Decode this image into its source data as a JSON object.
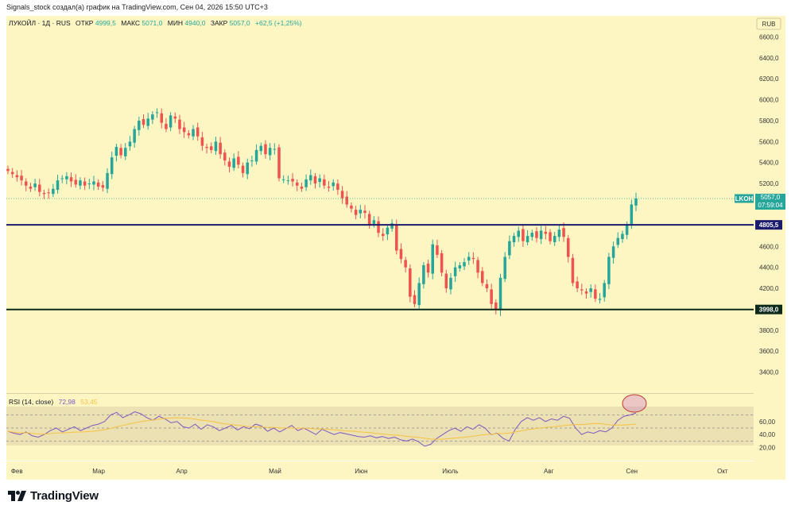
{
  "header": {
    "credit": "Signals_stock создал(а) график на TradingView.com, Сен 04, 2026 15:50 UTC+3"
  },
  "legend": {
    "symbol": "ЛУКОЙЛ · 1Д · RUS",
    "open_label": "ОТКР",
    "open": "4999,5",
    "high_label": "МАКС",
    "high": "5071,0",
    "low_label": "МИН",
    "low": "4940,0",
    "close_label": "ЗАКР",
    "close": "5057,0",
    "change": "+62,5 (+1,25%)"
  },
  "currency": "RUB",
  "price_tag": {
    "ticker": "LKOH",
    "price": "5057,0",
    "countdown": "07:59:04"
  },
  "levels": [
    {
      "value": 4805.5,
      "label": "4805,5"
    },
    {
      "value": 3998.0,
      "label": "3998,0"
    }
  ],
  "rsi": {
    "label": "RSI (14, close)",
    "value": "72,98",
    "ma_value": "53,45",
    "levels": [
      "60,00",
      "40,00",
      "20,00"
    ]
  },
  "logo": {
    "text": "TradingView"
  },
  "colors": {
    "background": "#fdf6c3",
    "up": "#26a69a",
    "down": "#ef5350",
    "level_line": "#1a1a6e",
    "rsi_line": "#7e57c2",
    "rsi_ma": "#f5c242"
  },
  "chart_data": {
    "type": "candlestick",
    "series_name": "ЛУКОЙЛ",
    "ylim": [
      3200,
      6800
    ],
    "y_ticks": [
      "6600,0",
      "6400,0",
      "6200,0",
      "6000,0",
      "5800,0",
      "5600,0",
      "5400,0",
      "5200,0",
      "4600,0",
      "4400,0",
      "4200,0",
      "3800,0",
      "3600,0",
      "3400,0"
    ],
    "x_ticks": [
      "Фев",
      "Мар",
      "Апр",
      "Май",
      "Июн",
      "Июль",
      "Авг",
      "Сен",
      "Окт"
    ],
    "last_close": 5057.0,
    "approx_closes": [
      5320,
      5290,
      5260,
      5230,
      5180,
      5150,
      5200,
      5120,
      5100,
      5110,
      5150,
      5230,
      5250,
      5270,
      5220,
      5190,
      5230,
      5180,
      5200,
      5220,
      5170,
      5160,
      5300,
      5450,
      5550,
      5470,
      5540,
      5600,
      5720,
      5800,
      5760,
      5820,
      5860,
      5880,
      5780,
      5720,
      5850,
      5820,
      5720,
      5690,
      5660,
      5720,
      5650,
      5560,
      5540,
      5520,
      5600,
      5480,
      5420,
      5360,
      5440,
      5380,
      5300,
      5400,
      5420,
      5520,
      5560,
      5480,
      5540,
      5530,
      5250,
      5240,
      5230,
      5220,
      5180,
      5150,
      5240,
      5280,
      5200,
      5250,
      5180,
      5160,
      5210,
      5140,
      5060,
      5000,
      4960,
      4900,
      4950,
      4920,
      4800,
      4850,
      4730,
      4700,
      4780,
      4820,
      4560,
      4480,
      4400,
      4120,
      4050,
      4250,
      4420,
      4350,
      4620,
      4520,
      4350,
      4200,
      4300,
      4400,
      4420,
      4450,
      4500,
      4480,
      4350,
      4250,
      4200,
      4050,
      4000,
      4300,
      4500,
      4650,
      4700,
      4750,
      4650,
      4700,
      4730,
      4680,
      4750,
      4720,
      4650,
      4700,
      4760,
      4690,
      4500,
      4250,
      4200,
      4180,
      4150,
      4200,
      4100,
      4100,
      4250,
      4500,
      4600,
      4680,
      4720,
      4800,
      5000,
      5057
    ],
    "rsi_approx": [
      45,
      42,
      40,
      44,
      38,
      36,
      40,
      46,
      50,
      44,
      48,
      52,
      46,
      50,
      54,
      56,
      60,
      70,
      74,
      66,
      70,
      75,
      72,
      66,
      62,
      68,
      64,
      58,
      60,
      52,
      50,
      56,
      48,
      55,
      52,
      46,
      50,
      54,
      47,
      52,
      49,
      56,
      53,
      45,
      50,
      44,
      49,
      54,
      46,
      50,
      45,
      40,
      48,
      44,
      40,
      43,
      41,
      39,
      37,
      36,
      38,
      35,
      37,
      34,
      36,
      32,
      30,
      33,
      29,
      22,
      25,
      34,
      40,
      46,
      50,
      45,
      52,
      48,
      55,
      50,
      40,
      42,
      34,
      30,
      48,
      60,
      66,
      62,
      66,
      60,
      64,
      62,
      68,
      65,
      50,
      40,
      44,
      42,
      46,
      44,
      50,
      62,
      68,
      70,
      73
    ]
  }
}
